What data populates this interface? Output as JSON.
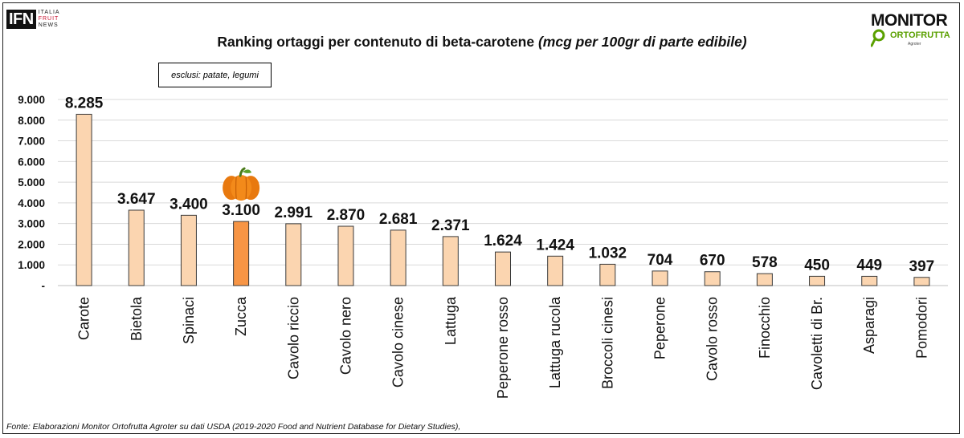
{
  "logo_ifn": {
    "mark": "IFN",
    "line1": "ITALIA",
    "line2": "FRUIT",
    "line3": "NEWS"
  },
  "logo_monitor": {
    "title": "MONITOR",
    "sub": "ORTOFRUTTA",
    "by": "Agroter"
  },
  "title": "Ranking ortaggi per contenuto di beta-carotene",
  "title_unit": "(mcg per 100gr di parte edibile)",
  "note": "esclusi: patate, legumi",
  "source": "Fonte: Elaborazioni Monitor Ortofrutta Agroter su dati USDA (2019-2020 Food and Nutrient Database for Dietary Studies),",
  "highlight_icon": "pumpkin-icon",
  "colors": {
    "bar": "#fbd5b0",
    "bar_highlight": "#f79545",
    "bar_stroke": "#3a3a3a",
    "grid": "#d9d9d9"
  },
  "chart_data": {
    "type": "bar",
    "title": "Ranking ortaggi per contenuto di beta-carotene (mcg per 100gr di parte edibile)",
    "categories": [
      "Carote",
      "Bietola",
      "Spinaci",
      "Zucca",
      "Cavolo riccio",
      "Cavolo nero",
      "Cavolo cinese",
      "Lattuga",
      "Peperone rosso",
      "Lattuga rucola",
      "Broccoli cinesi",
      "Peperone",
      "Cavolo rosso",
      "Finocchio",
      "Cavoletti di Br.",
      "Asparagi",
      "Pomodori"
    ],
    "values": [
      8285,
      3647,
      3400,
      3100,
      2991,
      2870,
      2681,
      2371,
      1624,
      1424,
      1032,
      704,
      670,
      578,
      450,
      449,
      397
    ],
    "value_labels": [
      "8.285",
      "3.647",
      "3.400",
      "3.100",
      "2.991",
      "2.870",
      "2.681",
      "2.371",
      "1.624",
      "1.424",
      "1.032",
      "704",
      "670",
      "578",
      "450",
      "449",
      "397"
    ],
    "highlight_category": "Zucca",
    "yticks": [
      0,
      1000,
      2000,
      3000,
      4000,
      5000,
      6000,
      7000,
      8000,
      9000
    ],
    "ytick_labels": [
      "-",
      "1.000",
      "2.000",
      "3.000",
      "4.000",
      "5.000",
      "6.000",
      "7.000",
      "8.000",
      "9.000"
    ],
    "ylim": [
      0,
      9000
    ],
    "grid": true,
    "legend": "none"
  }
}
